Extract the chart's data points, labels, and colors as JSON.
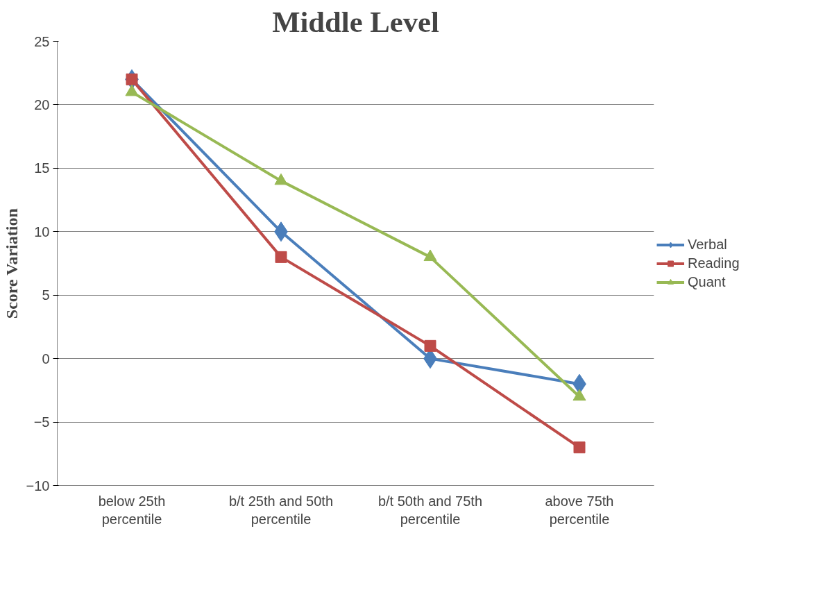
{
  "chart_data": {
    "type": "line",
    "title": "Middle Level",
    "ylabel": "Score Variation",
    "categories": [
      "below 25th percentile",
      "b/t 25th and 50th percentile",
      "b/t 50th and 75th percentile",
      "above 75th percentile"
    ],
    "series": [
      {
        "name": "Verbal",
        "color": "#4a7ebb",
        "marker": "diamond",
        "values": [
          22,
          10,
          0,
          -2
        ]
      },
      {
        "name": "Reading",
        "color": "#be4b48",
        "marker": "square",
        "values": [
          22,
          8,
          1,
          -7
        ]
      },
      {
        "name": "Quant",
        "color": "#98b954",
        "marker": "triangle",
        "values": [
          21,
          14,
          8,
          -3
        ]
      }
    ],
    "ylim": [
      -10,
      25
    ],
    "yticks": [
      -10,
      -5,
      0,
      5,
      10,
      15,
      20,
      25
    ],
    "grid": "y",
    "legend": "right",
    "line_style": "solid"
  }
}
